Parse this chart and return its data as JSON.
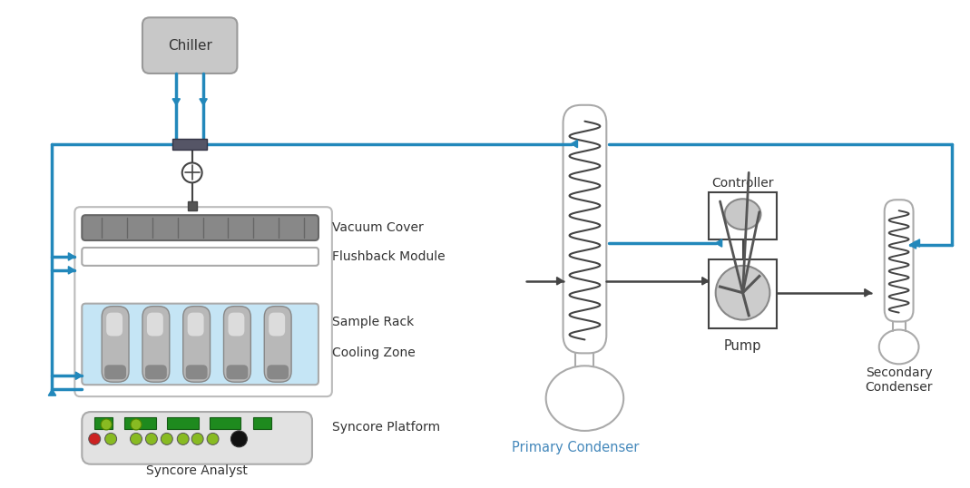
{
  "bg_color": "#ffffff",
  "line_color": "#444444",
  "blue_color": "#2288bb",
  "gray_chiller": "#c8c8c8",
  "gray_cover": "#909090",
  "gray_tube": "#b0b0b0",
  "gray_light": "#d8d8d8",
  "gray_panel": "#e0e0e0",
  "green_dark": "#1e7a1e",
  "green_light": "#88bb22",
  "red_led": "#cc2222",
  "blue_water": "#c5e5f5",
  "labels": {
    "chiller": "Chiller",
    "vacuum_cover": "Vacuum Cover",
    "flushback": "Flushback Module",
    "sample_rack": "Sample Rack",
    "cooling_zone": "Cooling Zone",
    "syncore_platform": "Syncore Platform",
    "syncore_analyst": "Syncore Analyst",
    "primary_condenser": "Primary Condenser",
    "controller": "Controller",
    "pump": "Pump",
    "secondary_condenser": "Secondary\nCondenser"
  }
}
